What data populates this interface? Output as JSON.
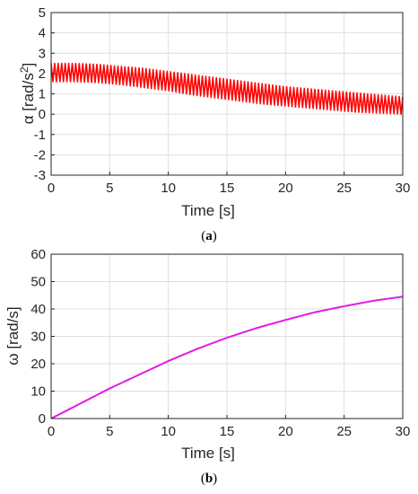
{
  "chart_data": [
    {
      "type": "line",
      "caption": "a",
      "xlabel": "Time [s]",
      "ylabel_main": "α [rad/s",
      "ylabel_sup": "2",
      "ylabel_end": "]",
      "xlim": [
        0,
        30
      ],
      "ylim": [
        -3,
        5
      ],
      "xticks": [
        0,
        5,
        10,
        15,
        20,
        25,
        30
      ],
      "yticks": [
        -3,
        -2,
        -1,
        0,
        1,
        2,
        3,
        4,
        5
      ],
      "grid": true,
      "line_color": "#ff0000",
      "oscillation_period_s": 0.3,
      "series": [
        {
          "x": [
            0,
            2,
            4,
            6,
            8,
            10,
            12,
            14,
            16,
            18,
            20,
            22,
            24,
            26,
            28,
            30
          ],
          "upper": [
            2.5,
            2.5,
            2.45,
            2.35,
            2.25,
            2.1,
            1.95,
            1.8,
            1.65,
            1.5,
            1.35,
            1.25,
            1.15,
            1.05,
            0.95,
            0.85
          ],
          "lower": [
            1.6,
            1.6,
            1.55,
            1.45,
            1.3,
            1.15,
            0.95,
            0.8,
            0.65,
            0.5,
            0.4,
            0.3,
            0.2,
            0.1,
            0.05,
            0.0
          ]
        }
      ]
    },
    {
      "type": "line",
      "caption": "b",
      "xlabel": "Time [s]",
      "ylabel": "ω [rad/s]",
      "xlim": [
        0,
        30
      ],
      "ylim": [
        0,
        60
      ],
      "xticks": [
        0,
        5,
        10,
        15,
        20,
        25,
        30
      ],
      "yticks": [
        0,
        10,
        20,
        30,
        40,
        50,
        60
      ],
      "grid": true,
      "line_color": "#e619e6",
      "series": [
        {
          "x": [
            0,
            2.5,
            5,
            7.5,
            10,
            12.5,
            15,
            17.5,
            20,
            22.5,
            25,
            27.5,
            30
          ],
          "y": [
            0,
            5.5,
            11,
            16,
            21,
            25.5,
            29.5,
            33,
            36,
            38.8,
            41,
            43,
            44.5
          ]
        }
      ]
    }
  ]
}
